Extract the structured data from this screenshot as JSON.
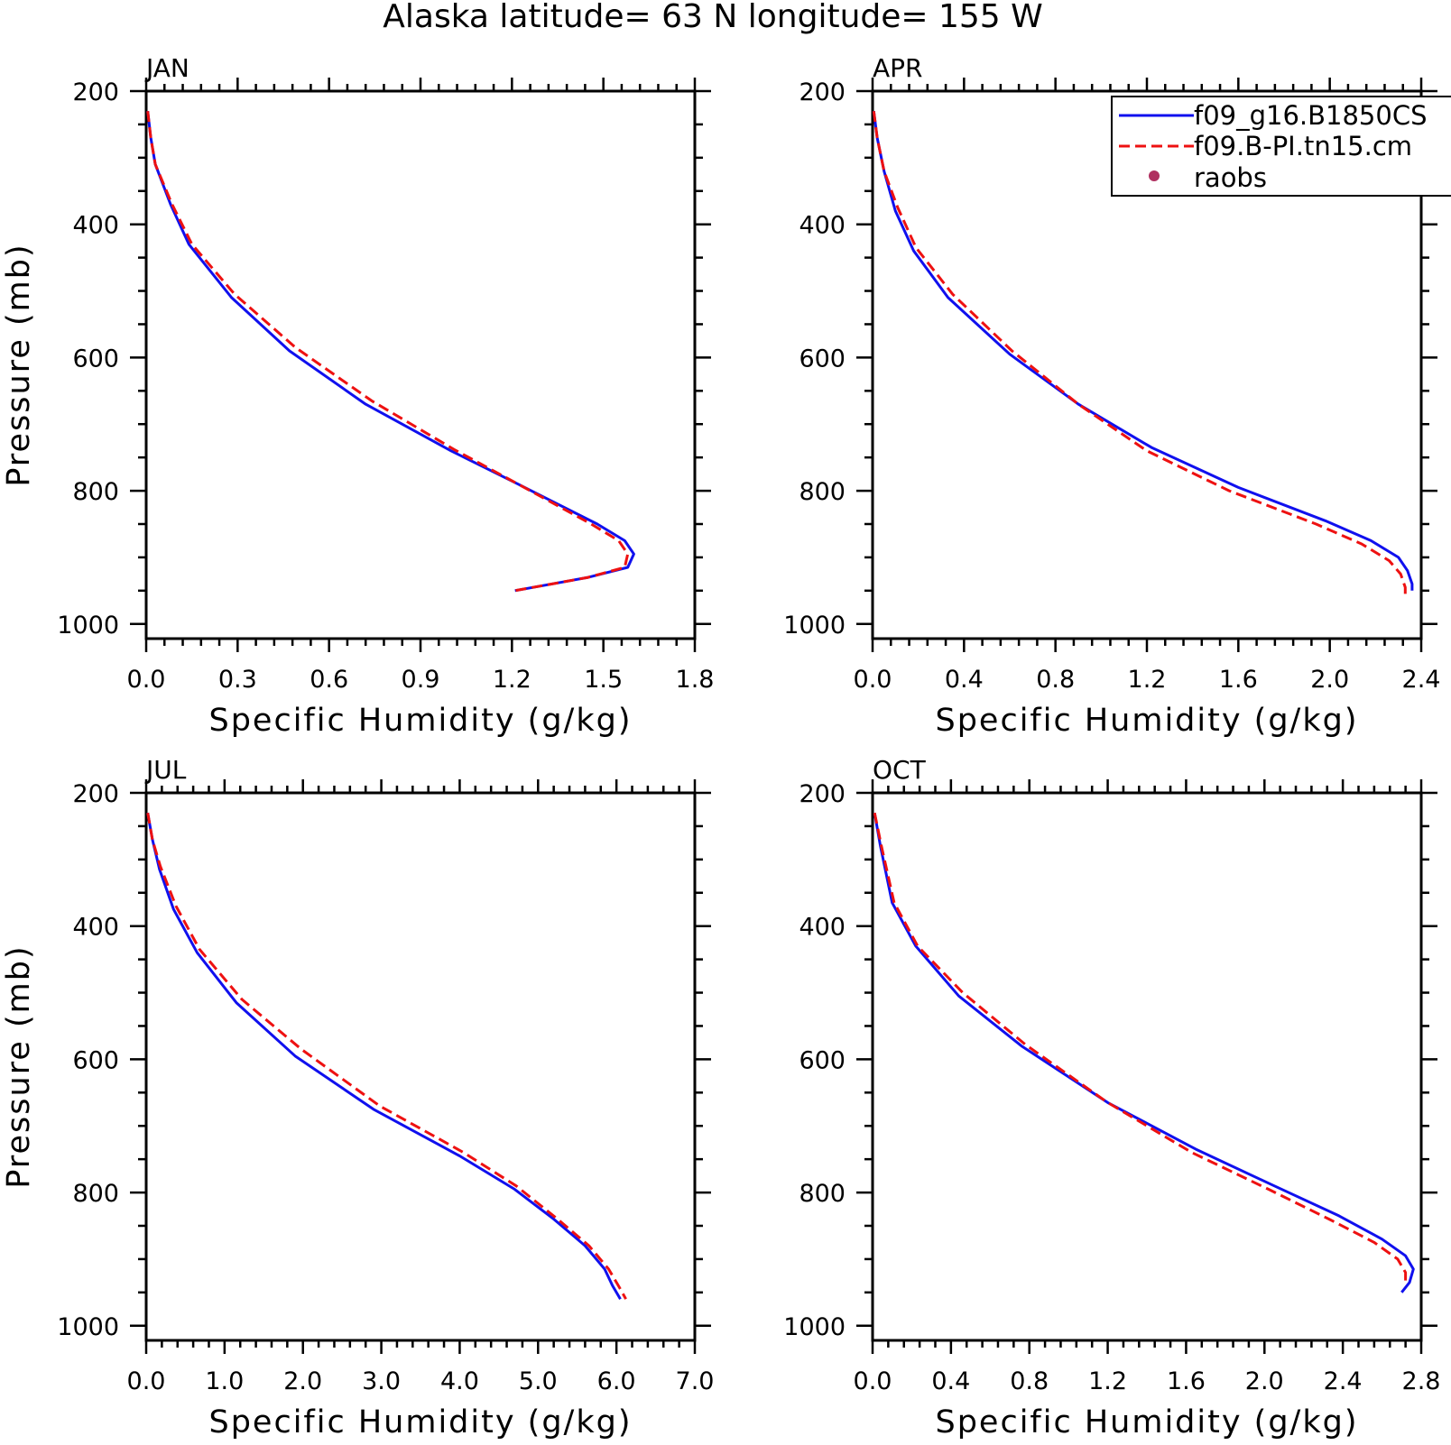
{
  "figure_title": "Alaska  latitude= 63 N longitude= 155 W",
  "colors": {
    "model_a": "#1010ee",
    "model_b": "#ee1111",
    "raobs": "#b03060"
  },
  "legend": {
    "entries": [
      {
        "label": "f09_g16.B1850CS",
        "style": "solid",
        "color": "#1010ee"
      },
      {
        "label": "f09.B-PI.tn15.cm",
        "style": "dashed",
        "color": "#ee1111"
      },
      {
        "label": "raobs",
        "style": "dot",
        "color": "#b03060"
      }
    ]
  },
  "chart_data": [
    {
      "type": "line",
      "panel_label": "JAN",
      "xlabel": "Specific Humidity (g/kg)",
      "ylabel": "Pressure (mb)",
      "xlim": [
        0,
        1.8
      ],
      "ylim": [
        1000,
        200
      ],
      "y_inverted": true,
      "xticks": [
        "0.0",
        "0.3",
        "0.6",
        "0.9",
        "1.2",
        "1.5",
        "1.8"
      ],
      "yticks": [
        "200",
        "400",
        "600",
        "800",
        "1000"
      ],
      "y_tick_values": [
        200,
        400,
        600,
        800,
        1000
      ],
      "series": [
        {
          "name": "f09_g16.B1850CS",
          "style": "solid",
          "points": [
            [
              0.005,
              230
            ],
            [
              0.015,
              270
            ],
            [
              0.03,
              310
            ],
            [
              0.08,
              370
            ],
            [
              0.14,
              430
            ],
            [
              0.28,
              510
            ],
            [
              0.47,
              590
            ],
            [
              0.72,
              670
            ],
            [
              1.0,
              740
            ],
            [
              1.22,
              790
            ],
            [
              1.48,
              850
            ],
            [
              1.57,
              875
            ],
            [
              1.6,
              895
            ],
            [
              1.58,
              915
            ],
            [
              1.45,
              930
            ],
            [
              1.21,
              950
            ]
          ]
        },
        {
          "name": "f09.B-PI.tn15.cm",
          "style": "dashed",
          "points": [
            [
              0.005,
              230
            ],
            [
              0.015,
              270
            ],
            [
              0.03,
              310
            ],
            [
              0.085,
              370
            ],
            [
              0.15,
              430
            ],
            [
              0.29,
              505
            ],
            [
              0.49,
              585
            ],
            [
              0.74,
              665
            ],
            [
              1.01,
              738
            ],
            [
              1.22,
              790
            ],
            [
              1.46,
              850
            ],
            [
              1.55,
              875
            ],
            [
              1.58,
              895
            ],
            [
              1.57,
              915
            ],
            [
              1.45,
              930
            ],
            [
              1.21,
              950
            ]
          ]
        },
        {
          "name": "raobs",
          "style": "dot",
          "points": []
        }
      ]
    },
    {
      "type": "line",
      "panel_label": "APR",
      "xlabel": "Specific Humidity (g/kg)",
      "ylabel": "",
      "xlim": [
        0,
        2.4
      ],
      "ylim": [
        1000,
        200
      ],
      "y_inverted": true,
      "xticks": [
        "0.0",
        "0.4",
        "0.8",
        "1.2",
        "1.6",
        "2.0",
        "2.4"
      ],
      "yticks": [
        "200",
        "400",
        "600",
        "800",
        "1000"
      ],
      "y_tick_values": [
        200,
        400,
        600,
        800,
        1000
      ],
      "series": [
        {
          "name": "f09_g16.B1850CS",
          "style": "solid",
          "points": [
            [
              0.005,
              230
            ],
            [
              0.02,
              270
            ],
            [
              0.05,
              320
            ],
            [
              0.1,
              380
            ],
            [
              0.18,
              440
            ],
            [
              0.33,
              510
            ],
            [
              0.6,
              595
            ],
            [
              0.9,
              670
            ],
            [
              1.22,
              735
            ],
            [
              1.6,
              795
            ],
            [
              1.98,
              845
            ],
            [
              2.18,
              875
            ],
            [
              2.3,
              900
            ],
            [
              2.34,
              920
            ],
            [
              2.36,
              940
            ],
            [
              2.36,
              950
            ]
          ]
        },
        {
          "name": "f09.B-PI.tn15.cm",
          "style": "dashed",
          "points": [
            [
              0.005,
              230
            ],
            [
              0.02,
              270
            ],
            [
              0.05,
              320
            ],
            [
              0.11,
              375
            ],
            [
              0.19,
              435
            ],
            [
              0.35,
              505
            ],
            [
              0.61,
              590
            ],
            [
              0.9,
              670
            ],
            [
              1.2,
              740
            ],
            [
              1.56,
              800
            ],
            [
              1.94,
              850
            ],
            [
              2.14,
              880
            ],
            [
              2.26,
              905
            ],
            [
              2.31,
              925
            ],
            [
              2.33,
              945
            ],
            [
              2.33,
              955
            ]
          ]
        },
        {
          "name": "raobs",
          "style": "dot",
          "points": []
        }
      ]
    },
    {
      "type": "line",
      "panel_label": "JUL",
      "xlabel": "Specific Humidity (g/kg)",
      "ylabel": "Pressure (mb)",
      "xlim": [
        0,
        7.0
      ],
      "ylim": [
        1000,
        200
      ],
      "y_inverted": true,
      "xticks": [
        "0.0",
        "1.0",
        "2.0",
        "3.0",
        "4.0",
        "5.0",
        "6.0",
        "7.0"
      ],
      "yticks": [
        "200",
        "400",
        "600",
        "800",
        "1000"
      ],
      "y_tick_values": [
        200,
        400,
        600,
        800,
        1000
      ],
      "series": [
        {
          "name": "f09_g16.B1850CS",
          "style": "solid",
          "points": [
            [
              0.02,
              230
            ],
            [
              0.08,
              270
            ],
            [
              0.17,
              315
            ],
            [
              0.35,
              375
            ],
            [
              0.65,
              440
            ],
            [
              1.15,
              515
            ],
            [
              1.9,
              595
            ],
            [
              2.9,
              675
            ],
            [
              4.0,
              745
            ],
            [
              4.7,
              795
            ],
            [
              5.2,
              840
            ],
            [
              5.6,
              880
            ],
            [
              5.85,
              915
            ],
            [
              5.95,
              940
            ],
            [
              6.05,
              960
            ]
          ]
        },
        {
          "name": "f09.B-PI.tn15.cm",
          "style": "dashed",
          "points": [
            [
              0.02,
              230
            ],
            [
              0.08,
              270
            ],
            [
              0.18,
              310
            ],
            [
              0.38,
              370
            ],
            [
              0.68,
              435
            ],
            [
              1.22,
              510
            ],
            [
              1.98,
              585
            ],
            [
              2.98,
              670
            ],
            [
              4.05,
              740
            ],
            [
              4.72,
              790
            ],
            [
              5.25,
              840
            ],
            [
              5.65,
              880
            ],
            [
              5.9,
              915
            ],
            [
              6.05,
              945
            ],
            [
              6.12,
              960
            ]
          ]
        },
        {
          "name": "raobs",
          "style": "dot",
          "points": []
        }
      ]
    },
    {
      "type": "line",
      "panel_label": "OCT",
      "xlabel": "Specific Humidity (g/kg)",
      "ylabel": "",
      "xlim": [
        0,
        2.8
      ],
      "ylim": [
        1000,
        200
      ],
      "y_inverted": true,
      "xticks": [
        "0.0",
        "0.4",
        "0.8",
        "1.2",
        "1.6",
        "2.0",
        "2.4",
        "2.8"
      ],
      "yticks": [
        "200",
        "400",
        "600",
        "800",
        "1000"
      ],
      "y_tick_values": [
        200,
        400,
        600,
        800,
        1000
      ],
      "series": [
        {
          "name": "f09_g16.B1850CS",
          "style": "solid",
          "points": [
            [
              0.01,
              230
            ],
            [
              0.04,
              280
            ],
            [
              0.1,
              365
            ],
            [
              0.22,
              430
            ],
            [
              0.44,
              505
            ],
            [
              0.76,
              580
            ],
            [
              1.2,
              665
            ],
            [
              1.65,
              735
            ],
            [
              2.05,
              790
            ],
            [
              2.38,
              835
            ],
            [
              2.6,
              870
            ],
            [
              2.72,
              895
            ],
            [
              2.76,
              915
            ],
            [
              2.74,
              935
            ],
            [
              2.7,
              950
            ]
          ]
        },
        {
          "name": "f09.B-PI.tn15.cm",
          "style": "dashed",
          "points": [
            [
              0.01,
              230
            ],
            [
              0.045,
              280
            ],
            [
              0.11,
              365
            ],
            [
              0.23,
              430
            ],
            [
              0.46,
              500
            ],
            [
              0.78,
              578
            ],
            [
              1.2,
              665
            ],
            [
              1.63,
              740
            ],
            [
              2.02,
              795
            ],
            [
              2.33,
              840
            ],
            [
              2.56,
              875
            ],
            [
              2.68,
              900
            ],
            [
              2.72,
              920
            ],
            [
              2.72,
              940
            ]
          ]
        },
        {
          "name": "raobs",
          "style": "dot",
          "points": []
        }
      ]
    }
  ]
}
